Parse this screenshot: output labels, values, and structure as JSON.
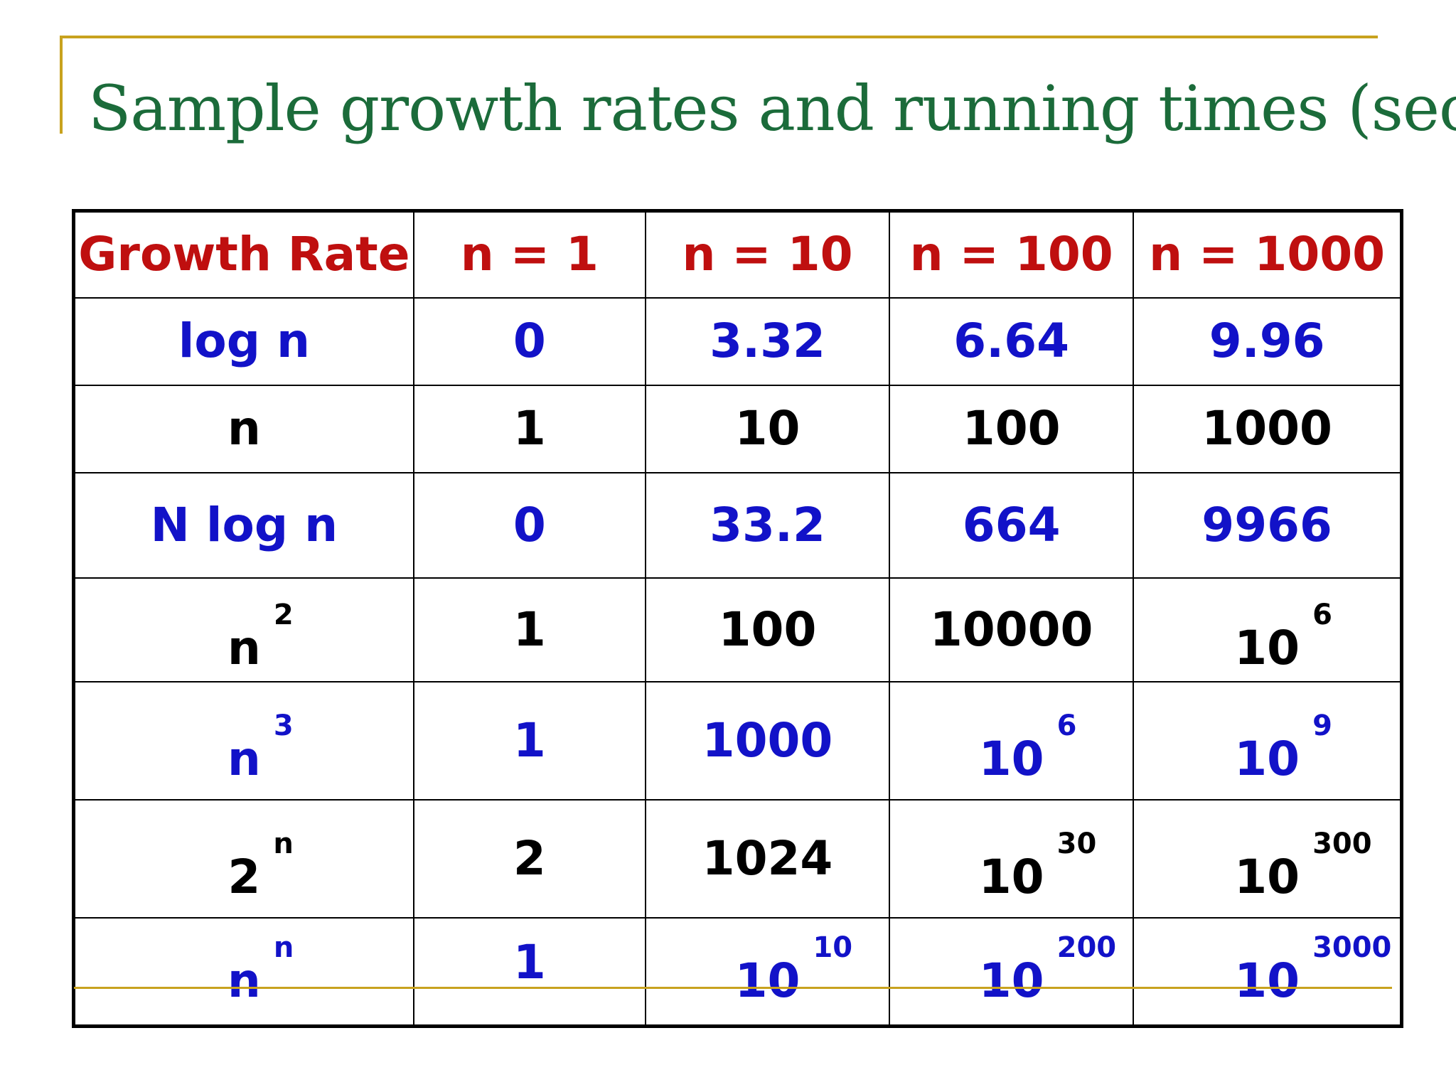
{
  "title": "Sample growth rates and running times (sec)",
  "colors": {
    "title": "#1b6b3a",
    "accent_line": "#c8a21e",
    "header_text": "#bf0f0f",
    "blue_text": "#1212c8",
    "black_text": "#000000"
  },
  "table": {
    "headers": [
      "Growth Rate",
      "n = 1",
      "n = 10",
      "n = 100",
      "n = 1000"
    ],
    "rows": [
      {
        "label": {
          "base": "log n",
          "exp": ""
        },
        "n1": {
          "base": "0",
          "exp": ""
        },
        "n10": {
          "base": "3.32",
          "exp": ""
        },
        "n100": {
          "base": "6.64",
          "exp": ""
        },
        "n1000": {
          "base": "9.96",
          "exp": ""
        }
      },
      {
        "label": {
          "base": "n",
          "exp": ""
        },
        "n1": {
          "base": "1",
          "exp": ""
        },
        "n10": {
          "base": "10",
          "exp": ""
        },
        "n100": {
          "base": "100",
          "exp": ""
        },
        "n1000": {
          "base": "1000",
          "exp": ""
        }
      },
      {
        "label": {
          "base": "N log n",
          "exp": ""
        },
        "n1": {
          "base": "0",
          "exp": ""
        },
        "n10": {
          "base": "33.2",
          "exp": ""
        },
        "n100": {
          "base": "664",
          "exp": ""
        },
        "n1000": {
          "base": "9966",
          "exp": ""
        }
      },
      {
        "label": {
          "base": "n",
          "exp": "2"
        },
        "n1": {
          "base": "1",
          "exp": ""
        },
        "n10": {
          "base": "100",
          "exp": ""
        },
        "n100": {
          "base": "10000",
          "exp": ""
        },
        "n1000": {
          "base": "10",
          "exp": "6"
        }
      },
      {
        "label": {
          "base": "n",
          "exp": "3"
        },
        "n1": {
          "base": "1",
          "exp": ""
        },
        "n10": {
          "base": "1000",
          "exp": ""
        },
        "n100": {
          "base": "10",
          "exp": "6"
        },
        "n1000": {
          "base": "10",
          "exp": "9"
        }
      },
      {
        "label": {
          "base": "2",
          "exp": "n"
        },
        "n1": {
          "base": "2",
          "exp": ""
        },
        "n10": {
          "base": "1024",
          "exp": ""
        },
        "n100": {
          "base": "10",
          "exp": "30"
        },
        "n1000": {
          "base": "10",
          "exp": "300"
        }
      },
      {
        "label": {
          "base": "n",
          "exp": "n"
        },
        "n1": {
          "base": "1",
          "exp": ""
        },
        "n10": {
          "base": "10",
          "exp": "10"
        },
        "n100": {
          "base": "10",
          "exp": "200"
        },
        "n1000": {
          "base": "10",
          "exp": "3000"
        }
      }
    ]
  }
}
